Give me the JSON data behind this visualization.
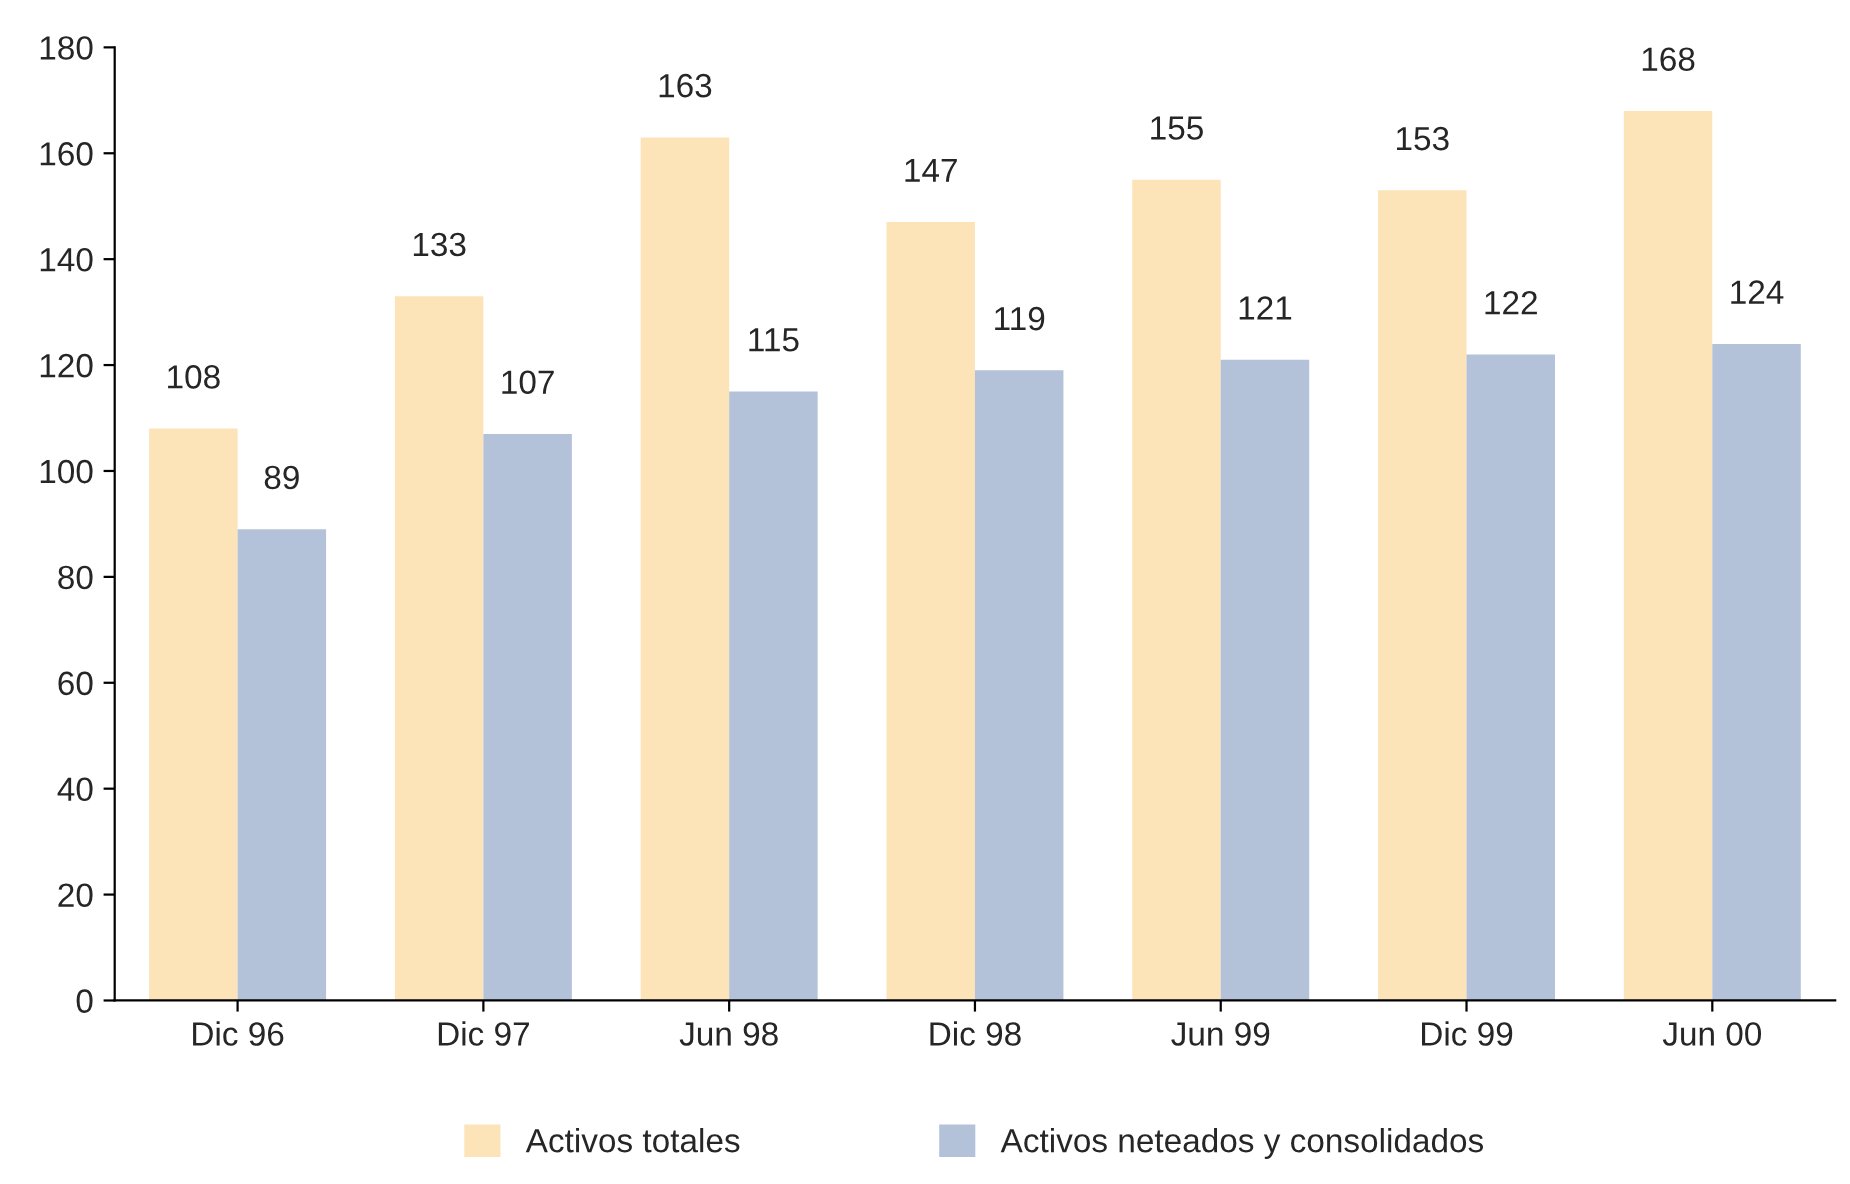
{
  "chart_data": {
    "type": "bar",
    "categories": [
      "Dic 96",
      "Dic 97",
      "Jun 98",
      "Dic 98",
      "Jun 99",
      "Dic 99",
      "Jun 00"
    ],
    "series": [
      {
        "name": "Activos totales",
        "color": "#fde3b8",
        "values": [
          108,
          133,
          163,
          147,
          155,
          153,
          168
        ]
      },
      {
        "name": "Activos neteados y consolidados",
        "color": "#b3c2d9",
        "values": [
          89,
          107,
          115,
          119,
          121,
          122,
          124
        ]
      }
    ],
    "ylim": [
      0,
      180
    ],
    "yticks": [
      0,
      20,
      40,
      60,
      80,
      100,
      120,
      140,
      160,
      180
    ],
    "data_labels": true,
    "grid": false,
    "legend": "bottom"
  }
}
